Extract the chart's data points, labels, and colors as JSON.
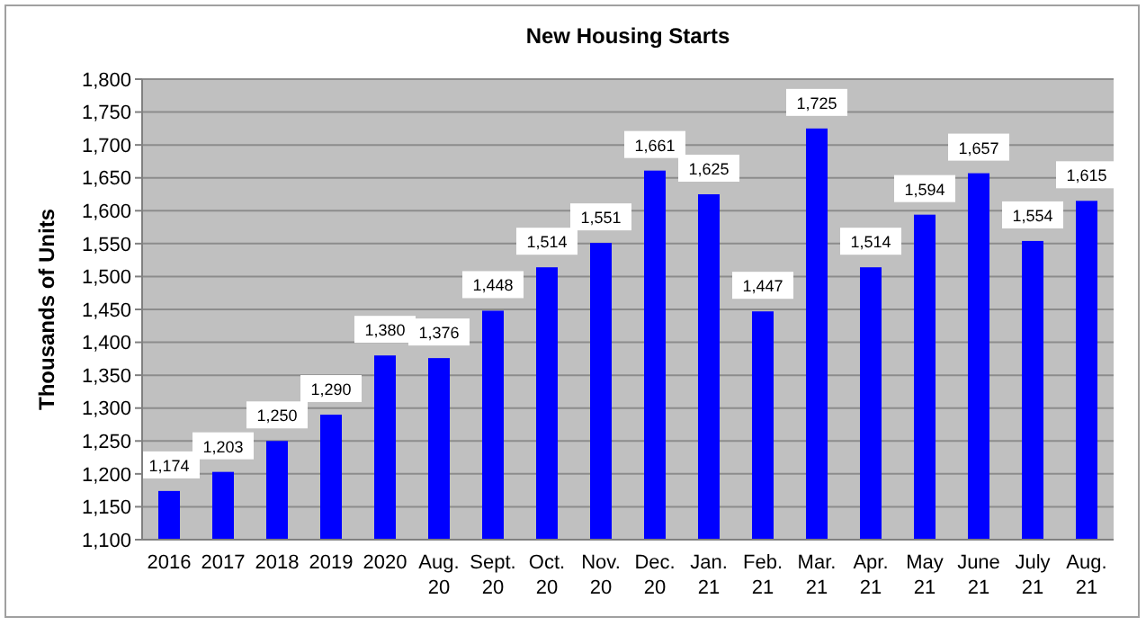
{
  "chart_data": {
    "type": "bar",
    "title": "New Housing Starts",
    "ylabel": "Thousands of Units",
    "categories": [
      "2016",
      "2017",
      "2018",
      "2019",
      "2020",
      "Aug. 20",
      "Sept. 20",
      "Oct. 20",
      "Nov. 20",
      "Dec. 20",
      "Jan. 21",
      "Feb. 21",
      "Mar. 21",
      "Apr. 21",
      "May 21",
      "June 21",
      "July 21",
      "Aug. 21"
    ],
    "values": [
      1174,
      1203,
      1250,
      1290,
      1380,
      1376,
      1448,
      1514,
      1551,
      1661,
      1625,
      1447,
      1725,
      1514,
      1594,
      1657,
      1554,
      1615
    ],
    "value_labels": [
      "1,174",
      "1,203",
      "1,250",
      "1,290",
      "1,380",
      "1,376",
      "1,448",
      "1,514",
      "1,551",
      "1,661",
      "1,625",
      "1,447",
      "1,725",
      "1,514",
      "1,594",
      "1,657",
      "1,554",
      "1,615"
    ],
    "color": "#0000ff",
    "ylim": [
      1100,
      1800
    ],
    "yticks": [
      {
        "value": 1100,
        "label": "1,100"
      },
      {
        "value": 1150,
        "label": "1,150"
      },
      {
        "value": 1200,
        "label": "1,200"
      },
      {
        "value": 1250,
        "label": "1,250"
      },
      {
        "value": 1300,
        "label": "1,300"
      },
      {
        "value": 1350,
        "label": "1,350"
      },
      {
        "value": 1400,
        "label": "1,400"
      },
      {
        "value": 1450,
        "label": "1,450"
      },
      {
        "value": 1500,
        "label": "1,500"
      },
      {
        "value": 1550,
        "label": "1,550"
      },
      {
        "value": 1600,
        "label": "1,600"
      },
      {
        "value": 1650,
        "label": "1,650"
      },
      {
        "value": 1700,
        "label": "1,700"
      },
      {
        "value": 1750,
        "label": "1,750"
      },
      {
        "value": 1800,
        "label": "1,800"
      }
    ],
    "grid": "y"
  }
}
